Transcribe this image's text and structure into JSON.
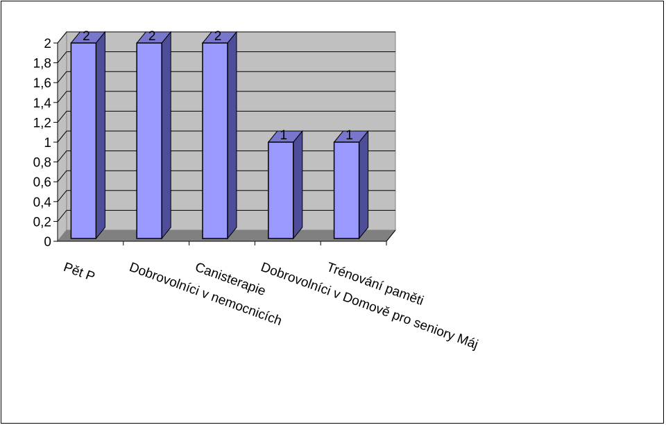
{
  "chart_data": {
    "type": "bar",
    "title": "",
    "xlabel": "",
    "ylabel": "",
    "categories": [
      "Pět P",
      "Dobrovolníci v nemocnicích",
      "Canisterapie",
      "Dobrovolníci v Domově pro seniory Máj",
      "Trénování paměti"
    ],
    "values": [
      2,
      2,
      2,
      1,
      1
    ],
    "data_labels": [
      "2",
      "2",
      "2",
      "1",
      "1"
    ],
    "ylim": [
      0,
      2
    ],
    "y_ticks": [
      "0",
      "0,2",
      "0,4",
      "0,6",
      "0,8",
      "1",
      "1,2",
      "1,4",
      "1,6",
      "1,8",
      "2"
    ],
    "grid": true,
    "legend": "none",
    "style": "3d-column",
    "colors": {
      "bar_front": "#9999ff",
      "bar_side": "#4d4d99",
      "bar_top": "#7777cc",
      "wall": "#c0c0c0",
      "floor": "#808080",
      "gridline": "#000000"
    }
  }
}
